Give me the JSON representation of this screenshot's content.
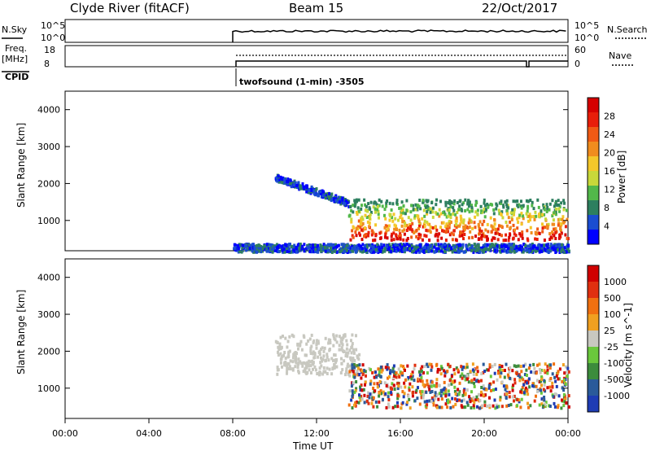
{
  "header": {
    "station": "Clyde River (fitACF)",
    "beam": "Beam 15",
    "date": "22/Oct/2017"
  },
  "strip": {
    "nsky_label": "N.Sky",
    "nsearch_label": "N.Search",
    "nsky_ticks": [
      "10^5",
      "10^0"
    ],
    "nsearch_ticks": [
      "10^5",
      "10^0"
    ],
    "freq_label": "Freq.",
    "freq_unit": "[MHz]",
    "freq_ticks": [
      "18",
      "8"
    ],
    "nave_label": "Nave",
    "nave_ticks": [
      "60",
      "0"
    ],
    "cpid_label": "CPID",
    "cpid_text": "twofsound (1-min) -3505"
  },
  "chart_data": [
    {
      "type": "heatmap",
      "name": "power",
      "ylabel": "Slant Range [km]",
      "colorbar_label": "Power [dB]",
      "colorbar_ticks": [
        "28",
        "24",
        "20",
        "16",
        "12",
        "8",
        "4"
      ],
      "colorbar_colors": [
        "#0000ff",
        "#1a4dd1",
        "#2d7f5f",
        "#52b84a",
        "#c8d83a",
        "#f4c72a",
        "#f08c1e",
        "#f05a14",
        "#e81e0a",
        "#d60000"
      ],
      "yticks": [
        "4000",
        "3000",
        "2000",
        "1000"
      ],
      "yrange": [
        180,
        4500
      ],
      "xrange_hours": [
        0,
        24
      ],
      "data_start_hour": 8,
      "features": [
        {
          "desc": "weak echoes",
          "hours": [
            8,
            24
          ],
          "range_km": [
            180,
            400
          ],
          "level": "low"
        },
        {
          "desc": "sloping band",
          "hours": [
            10,
            13.5
          ],
          "range_km": [
            1200,
            2200
          ],
          "level": "low"
        },
        {
          "desc": "strong band",
          "hours": [
            13.5,
            24
          ],
          "range_km": [
            500,
            1600
          ],
          "level": "high"
        }
      ]
    },
    {
      "type": "heatmap",
      "name": "velocity",
      "ylabel": "Slant Range [km]",
      "colorbar_label": "Velocity [m s^-1]",
      "colorbar_ticks": [
        "1000",
        "500",
        "100",
        "25",
        "-25",
        "-100",
        "-500",
        "-1000"
      ],
      "colorbar_colors": [
        "#1e3cb4",
        "#2a5a9a",
        "#3c8c3c",
        "#6ac83c",
        "#c8c8c0",
        "#f0a020",
        "#f07010",
        "#e03010",
        "#d00000"
      ],
      "yticks": [
        "4000",
        "3000",
        "2000",
        "1000"
      ],
      "yrange": [
        180,
        4500
      ],
      "xrange_hours": [
        0,
        24
      ],
      "data_start_hour": 8,
      "features": [
        {
          "desc": "ground scatter",
          "hours": [
            10,
            14
          ],
          "range_km": [
            1400,
            2500
          ],
          "value": "ground"
        },
        {
          "desc": "mixed flows",
          "hours": [
            13.5,
            24
          ],
          "range_km": [
            500,
            1700
          ],
          "value": "mixed"
        }
      ]
    }
  ],
  "xaxis": {
    "ticks": [
      "00:00",
      "04:00",
      "08:00",
      "12:00",
      "16:00",
      "20:00",
      "00:00"
    ],
    "label": "Time UT"
  }
}
